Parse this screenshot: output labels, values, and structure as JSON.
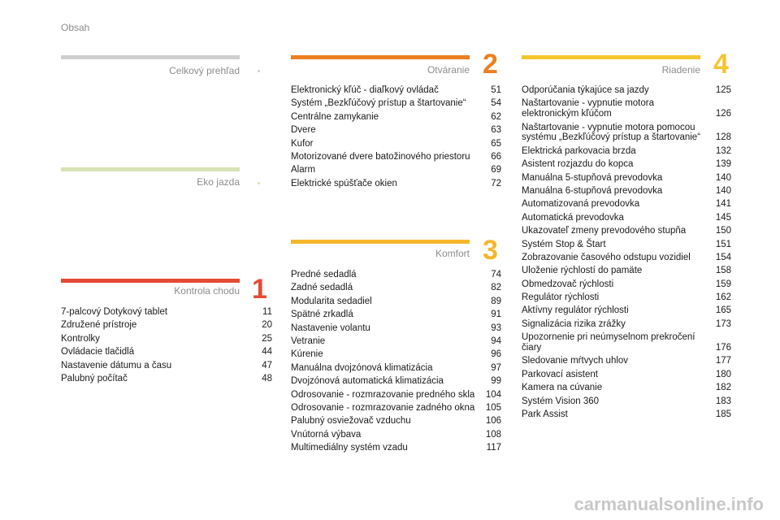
{
  "page_label": "Obsah",
  "watermark": "carmanualsonline.info",
  "colors": {
    "gray": "#cfcfcf",
    "green": "#d8e3b5",
    "red": "#e64a35",
    "orange": "#ec7f1e",
    "yellow": "#f5b62a",
    "gold": "#f3c52e"
  },
  "sections": {
    "overview": {
      "title": "Celkový prehľad"
    },
    "eco": {
      "title": "Eko jazda"
    },
    "s1": {
      "number": "1",
      "title": "Kontrola chodu",
      "items": [
        {
          "text": "7-palcový Dotykový tablet",
          "page": "11"
        },
        {
          "text": "Združené prístroje",
          "page": "20"
        },
        {
          "text": "Kontrolky",
          "page": "25"
        },
        {
          "text": "Ovládacie tlačidlá",
          "page": "44"
        },
        {
          "text": "Nastavenie dátumu a času",
          "page": "47"
        },
        {
          "text": "Palubný počítač",
          "page": "48"
        }
      ]
    },
    "s2": {
      "number": "2",
      "title": "Otváranie",
      "items": [
        {
          "text": "Elektronický kľúč - diaľkový ovládač",
          "page": "51"
        },
        {
          "text": "Systém „Bezkľúčový prístup a štartovanie“",
          "page": "54"
        },
        {
          "text": "Centrálne zamykanie",
          "page": "62"
        },
        {
          "text": "Dvere",
          "page": "63"
        },
        {
          "text": "Kufor",
          "page": "65"
        },
        {
          "text": "Motorizované dvere batožinového priestoru",
          "page": "66"
        },
        {
          "text": "Alarm",
          "page": "69"
        },
        {
          "text": "Elektrické spúšťače okien",
          "page": "72"
        }
      ]
    },
    "s3": {
      "number": "3",
      "title": "Komfort",
      "items": [
        {
          "text": "Predné sedadlá",
          "page": "74"
        },
        {
          "text": "Zadné sedadlá",
          "page": "82"
        },
        {
          "text": "Modularita sedadiel",
          "page": "89"
        },
        {
          "text": "Spätné zrkadlá",
          "page": "91"
        },
        {
          "text": "Nastavenie volantu",
          "page": "93"
        },
        {
          "text": "Vetranie",
          "page": "94"
        },
        {
          "text": "Kúrenie",
          "page": "96"
        },
        {
          "text": "Manuálna dvojzónová klimatizácia",
          "page": "97"
        },
        {
          "text": "Dvojzónová automatická klimatizácia",
          "page": "99"
        },
        {
          "text": "Odrosovanie - rozmrazovanie predného skla",
          "page": "104"
        },
        {
          "text": "Odrosovanie - rozmrazovanie zadného okna",
          "page": "105"
        },
        {
          "text": "Palubný osviežovač vzduchu",
          "page": "106"
        },
        {
          "text": "Vnútorná výbava",
          "page": "108"
        },
        {
          "text": "Multimediálny systém vzadu",
          "page": "117"
        }
      ]
    },
    "s4": {
      "number": "4",
      "title": "Riadenie",
      "items": [
        {
          "text": "Odporúčania týkajúce sa jazdy",
          "page": "125"
        },
        {
          "text": "Naštartovanie - vypnutie motora elektronickým kľúčom",
          "page": "126"
        },
        {
          "text": "Naštartovanie - vypnutie motora pomocou systému „Bezkľúčový prístup a štartovanie“",
          "page": "128"
        },
        {
          "text": "Elektrická parkovacia brzda",
          "page": "132"
        },
        {
          "text": "Asistent rozjazdu do kopca",
          "page": "139"
        },
        {
          "text": "Manuálna 5-stupňová prevodovka",
          "page": "140"
        },
        {
          "text": "Manuálna 6-stupňová prevodovka",
          "page": "140"
        },
        {
          "text": "Automatizovaná prevodovka",
          "page": "141"
        },
        {
          "text": "Automatická prevodovka",
          "page": "145"
        },
        {
          "text": "Ukazovateľ zmeny prevodového stupňa",
          "page": "150"
        },
        {
          "text": "Systém Stop & Štart",
          "page": "151"
        },
        {
          "text": "Zobrazovanie časového odstupu vozidiel",
          "page": "154"
        },
        {
          "text": "Uloženie rýchlostí do pamäte",
          "page": "158"
        },
        {
          "text": "Obmedzovač rýchlosti",
          "page": "159"
        },
        {
          "text": "Regulátor rýchlosti",
          "page": "162"
        },
        {
          "text": "Aktívny regulátor rýchlosti",
          "page": "165"
        },
        {
          "text": "Signalizácia rizika zrážky",
          "page": "173"
        },
        {
          "text": "Upozornenie pri neúmyselnom prekročení čiary",
          "page": "176"
        },
        {
          "text": "Sledovanie mŕtvych uhlov",
          "page": "177"
        },
        {
          "text": "Parkovací asistent",
          "page": "180"
        },
        {
          "text": "Kamera na cúvanie",
          "page": "182"
        },
        {
          "text": "Systém Vision 360",
          "page": "183"
        },
        {
          "text": "Park Assist",
          "page": "185"
        }
      ]
    }
  }
}
